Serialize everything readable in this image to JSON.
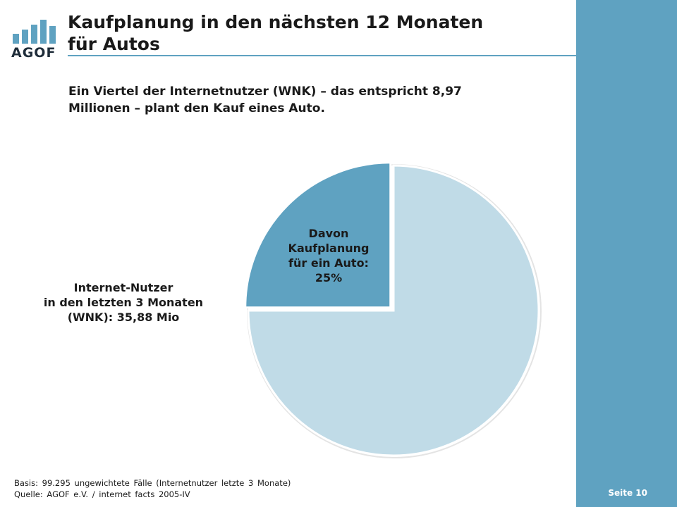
{
  "logo": {
    "text": "AGOF"
  },
  "title_line1": "Kaufplanung in den nächsten 12 Monaten",
  "title_line2": "für Autos",
  "subtitle_line1": "Ein Viertel der Internetnutzer (WNK) – das entspricht 8,97",
  "subtitle_line2": "Millionen – plant den Kauf eines Auto.",
  "colors": {
    "accent": "#5fa2c1",
    "slice_highlight": "#5fa2c1",
    "slice_base": "#c0dbe7"
  },
  "chart_data": {
    "type": "pie",
    "slices": [
      {
        "label": "Davon Kaufplanung für ein Auto: 25%",
        "value": 25,
        "color": "#5fa2c1",
        "exploded": true
      },
      {
        "label": "Internet-Nutzer in den letzten 3 Monaten (WNK): 35,88 Mio",
        "value": 75,
        "color": "#c0dbe7",
        "exploded": false
      }
    ],
    "legend": "none"
  },
  "annotations": {
    "outer_lines": [
      "Internet-Nutzer",
      "in den letzten 3 Monaten",
      "(WNK): 35,88 Mio"
    ],
    "slice_lines": [
      "Davon",
      "Kaufplanung",
      "für ein Auto:",
      "25%"
    ]
  },
  "footer": {
    "basis": "Basis: 99.295 ungewichtete Fälle (Internetnutzer letzte 3 Monate)",
    "source": "Quelle: AGOF e.V. / internet facts 2005-IV"
  },
  "page_number": "Seite 10"
}
